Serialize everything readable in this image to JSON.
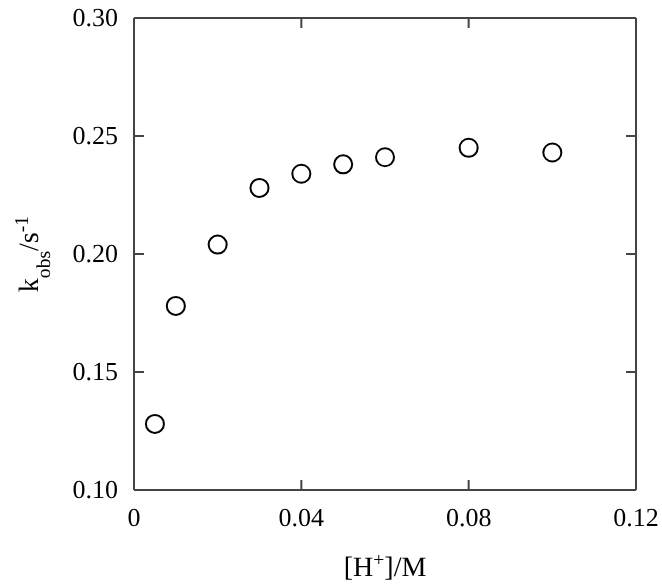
{
  "chart_data": {
    "type": "scatter",
    "xlabel": "[H$^{+}$]/M",
    "ylabel": "k$_{obs}$/s$^{-1}$",
    "x": [
      0.005,
      0.01,
      0.02,
      0.03,
      0.04,
      0.05,
      0.06,
      0.08,
      0.1
    ],
    "series": [
      {
        "color": "#000000",
        "values": [
          0.128,
          0.178,
          0.204,
          0.228,
          0.234,
          0.238,
          0.241,
          0.245,
          0.243
        ]
      }
    ],
    "xlim": [
      0,
      0.12
    ],
    "xticks": [
      0,
      0.04,
      0.08,
      0.12
    ],
    "ylim": [
      0.1,
      0.3
    ],
    "yticks": [
      {
        "value": 0.1,
        "label": "0.10"
      },
      {
        "value": 0.15,
        "label": "0.15"
      },
      {
        "value": 0.2,
        "label": "0.20"
      },
      {
        "value": 0.25,
        "label": "0.25"
      },
      {
        "value": 0.3,
        "label": "0.30"
      }
    ],
    "marker": "circle"
  }
}
